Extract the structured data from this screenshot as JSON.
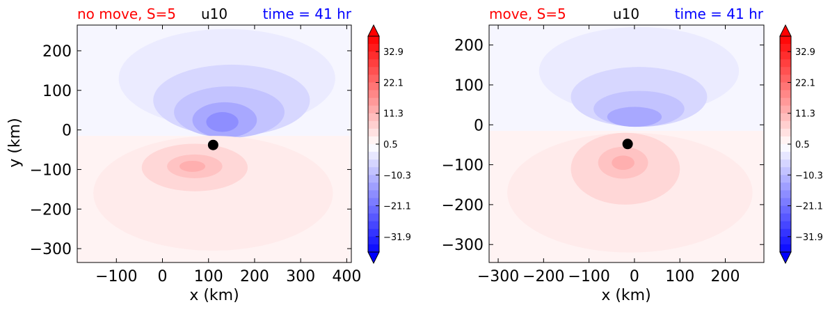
{
  "colors": {
    "neg": "#0000ff",
    "pos": "#ff0000",
    "title_left": "#ff0000",
    "title_center": "#000000",
    "title_right": "#0000ff",
    "marker": "#000000"
  },
  "colorbar_ticks": [
    "32.9",
    "22.1",
    "11.3",
    "0.5",
    "−10.3",
    "−21.1",
    "−31.9"
  ],
  "chart_data": [
    {
      "type": "heatmap",
      "title_left": "no move, S=5",
      "title_center": "u10",
      "title_right": "time = 41 hr",
      "xlabel": "x (km)",
      "ylabel": "y (km)",
      "xlim": [
        -185,
        410
      ],
      "ylim": [
        -335,
        265
      ],
      "xticks": [
        "−100",
        "0",
        "100",
        "200",
        "300",
        "400"
      ],
      "yticks": [
        "200",
        "100",
        "0",
        "−100",
        "−200",
        "−300"
      ],
      "xtick_values": [
        -100,
        0,
        100,
        200,
        300,
        400
      ],
      "ytick_values": [
        200,
        100,
        0,
        -100,
        -200,
        -300
      ],
      "colorbar": {
        "min": -37.3,
        "max": 38.3,
        "ticks": [
          32.9,
          22.1,
          11.3,
          0.5,
          -10.3,
          -21.1,
          -31.9
        ],
        "extend": "both"
      },
      "marker": {
        "x": 110,
        "y": -38
      },
      "blobs": [
        {
          "cx": 140,
          "cy": 130,
          "rx": 235,
          "ry": 125,
          "value": -3
        },
        {
          "cx": 150,
          "cy": 75,
          "rx": 170,
          "ry": 90,
          "value": -6
        },
        {
          "cx": 145,
          "cy": 45,
          "rx": 120,
          "ry": 65,
          "value": -9
        },
        {
          "cx": 135,
          "cy": 25,
          "rx": 70,
          "ry": 45,
          "value": -13
        },
        {
          "cx": 130,
          "cy": 20,
          "rx": 35,
          "ry": 25,
          "value": -17
        },
        {
          "cx": 110,
          "cy": -160,
          "rx": 260,
          "ry": 145,
          "value": 3
        },
        {
          "cx": 70,
          "cy": -95,
          "rx": 115,
          "ry": 60,
          "value": 6
        },
        {
          "cx": 70,
          "cy": -92,
          "rx": 60,
          "ry": 30,
          "value": 9
        },
        {
          "cx": 65,
          "cy": -92,
          "rx": 28,
          "ry": 14,
          "value": 12
        }
      ]
    },
    {
      "type": "heatmap",
      "title_left": "move, S=5",
      "title_center": "u10",
      "title_right": "time = 41 hr",
      "xlabel": "x (km)",
      "ylabel": "",
      "xlim": [
        -320,
        285
      ],
      "ylim": [
        -345,
        250
      ],
      "xticks": [
        "−300",
        "−200",
        "−100",
        "0",
        "100",
        "200"
      ],
      "yticks": [
        "200",
        "100",
        "0",
        "−100",
        "−200",
        "−300"
      ],
      "xtick_values": [
        -300,
        -200,
        -100,
        0,
        100,
        200
      ],
      "ytick_values": [
        200,
        100,
        0,
        -100,
        -200,
        -300
      ],
      "colorbar": {
        "min": -37.3,
        "max": 38.3,
        "ticks": [
          32.9,
          22.1,
          11.3,
          0.5,
          -10.3,
          -21.1,
          -31.9
        ],
        "extend": "both"
      },
      "marker": {
        "x": -15,
        "y": -48
      },
      "blobs": [
        {
          "cx": 10,
          "cy": 135,
          "rx": 220,
          "ry": 110,
          "value": -3
        },
        {
          "cx": 10,
          "cy": 70,
          "rx": 150,
          "ry": 75,
          "value": -6
        },
        {
          "cx": 10,
          "cy": 40,
          "rx": 100,
          "ry": 45,
          "value": -9
        },
        {
          "cx": 0,
          "cy": 20,
          "rx": 60,
          "ry": 25,
          "value": -13
        },
        {
          "cx": -10,
          "cy": -170,
          "rx": 270,
          "ry": 150,
          "value": 3
        },
        {
          "cx": -20,
          "cy": -110,
          "rx": 120,
          "ry": 90,
          "value": 6
        },
        {
          "cx": -25,
          "cy": -95,
          "rx": 55,
          "ry": 40,
          "value": 9
        },
        {
          "cx": -25,
          "cy": -95,
          "rx": 25,
          "ry": 18,
          "value": 12
        }
      ]
    }
  ]
}
